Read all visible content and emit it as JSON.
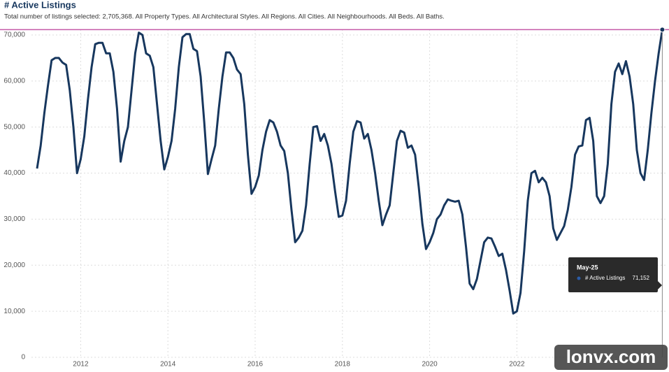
{
  "chart_data": {
    "type": "line",
    "title": "# Active Listings",
    "subtitle": "Total number of listings selected: 2,705,368. All Property Types. All Architectural Styles. All Regions. All Cities. All Neighbourhoods. All Beds. All Baths.",
    "x": [
      "2011-01",
      "2011-02",
      "2011-03",
      "2011-04",
      "2011-05",
      "2011-06",
      "2011-07",
      "2011-08",
      "2011-09",
      "2011-10",
      "2011-11",
      "2011-12",
      "2012-01",
      "2012-02",
      "2012-03",
      "2012-04",
      "2012-05",
      "2012-06",
      "2012-07",
      "2012-08",
      "2012-09",
      "2012-10",
      "2012-11",
      "2012-12",
      "2013-01",
      "2013-02",
      "2013-03",
      "2013-04",
      "2013-05",
      "2013-06",
      "2013-07",
      "2013-08",
      "2013-09",
      "2013-10",
      "2013-11",
      "2013-12",
      "2014-01",
      "2014-02",
      "2014-03",
      "2014-04",
      "2014-05",
      "2014-06",
      "2014-07",
      "2014-08",
      "2014-09",
      "2014-10",
      "2014-11",
      "2014-12",
      "2015-01",
      "2015-02",
      "2015-03",
      "2015-04",
      "2015-05",
      "2015-06",
      "2015-07",
      "2015-08",
      "2015-09",
      "2015-10",
      "2015-11",
      "2015-12",
      "2016-01",
      "2016-02",
      "2016-03",
      "2016-04",
      "2016-05",
      "2016-06",
      "2016-07",
      "2016-08",
      "2016-09",
      "2016-10",
      "2016-11",
      "2016-12",
      "2017-01",
      "2017-02",
      "2017-03",
      "2017-04",
      "2017-05",
      "2017-06",
      "2017-07",
      "2017-08",
      "2017-09",
      "2017-10",
      "2017-11",
      "2017-12",
      "2018-01",
      "2018-02",
      "2018-03",
      "2018-04",
      "2018-05",
      "2018-06",
      "2018-07",
      "2018-08",
      "2018-09",
      "2018-10",
      "2018-11",
      "2018-12",
      "2019-01",
      "2019-02",
      "2019-03",
      "2019-04",
      "2019-05",
      "2019-06",
      "2019-07",
      "2019-08",
      "2019-09",
      "2019-10",
      "2019-11",
      "2019-12",
      "2020-01",
      "2020-02",
      "2020-03",
      "2020-04",
      "2020-05",
      "2020-06",
      "2020-07",
      "2020-08",
      "2020-09",
      "2020-10",
      "2020-11",
      "2020-12",
      "2021-01",
      "2021-02",
      "2021-03",
      "2021-04",
      "2021-05",
      "2021-06",
      "2021-07",
      "2021-08",
      "2021-09",
      "2021-10",
      "2021-11",
      "2021-12",
      "2022-01",
      "2022-02",
      "2022-03",
      "2022-04",
      "2022-05",
      "2022-06",
      "2022-07",
      "2022-08",
      "2022-09",
      "2022-10",
      "2022-11",
      "2022-12",
      "2023-01",
      "2023-02",
      "2023-03",
      "2023-04",
      "2023-05",
      "2023-06",
      "2023-07",
      "2023-08",
      "2023-09",
      "2023-10",
      "2023-11",
      "2023-12",
      "2024-01",
      "2024-02",
      "2024-03",
      "2024-04",
      "2024-05",
      "2024-06",
      "2024-07",
      "2024-08",
      "2024-09",
      "2024-10",
      "2024-11",
      "2024-12",
      "2025-01",
      "2025-02",
      "2025-03",
      "2025-04",
      "2025-05"
    ],
    "series": [
      {
        "name": "# Active Listings",
        "color": "#17375e",
        "values": [
          41000,
          46000,
          53000,
          59000,
          64500,
          65000,
          65000,
          64000,
          63500,
          58000,
          50000,
          40000,
          43000,
          48000,
          56000,
          63000,
          68000,
          68300,
          68300,
          66000,
          66000,
          62000,
          54000,
          42500,
          47000,
          50000,
          58000,
          66000,
          70500,
          70000,
          66000,
          65500,
          63000,
          55000,
          47000,
          40800,
          43500,
          47000,
          54000,
          63000,
          69500,
          70200,
          70200,
          67000,
          66500,
          61000,
          51000,
          39800,
          43000,
          46000,
          54000,
          61000,
          66200,
          66200,
          65000,
          62500,
          61500,
          55000,
          44000,
          35500,
          37000,
          39500,
          45000,
          49000,
          51500,
          51000,
          49000,
          46000,
          44800,
          40000,
          32000,
          25000,
          26000,
          27500,
          33000,
          42000,
          50000,
          50200,
          47000,
          48500,
          46000,
          42000,
          36000,
          30500,
          30800,
          34000,
          42000,
          49000,
          51300,
          51000,
          47500,
          48500,
          45000,
          40000,
          34000,
          28700,
          31000,
          33000,
          40000,
          47000,
          49200,
          48800,
          45500,
          46000,
          44000,
          37000,
          29000,
          23500,
          25000,
          27000,
          30000,
          31000,
          33000,
          34300,
          34000,
          33800,
          34000,
          31000,
          24000,
          16000,
          14800,
          17000,
          21000,
          25000,
          26000,
          25800,
          24000,
          22000,
          22500,
          19000,
          14500,
          9500,
          10000,
          14000,
          23000,
          34000,
          40000,
          40500,
          38000,
          39000,
          38000,
          35000,
          28000,
          25500,
          27000,
          28500,
          32000,
          37000,
          44000,
          45800,
          46000,
          51500,
          52000,
          47000,
          35000,
          33500,
          35000,
          42000,
          55000,
          62000,
          63800,
          61500,
          64300,
          61000,
          55000,
          45000,
          40000,
          38500,
          45000,
          53000,
          60000,
          66000,
          71152
        ]
      }
    ],
    "xticks": [
      2012,
      2014,
      2016,
      2018,
      2020,
      2022
    ],
    "ylim": [
      0,
      70000
    ],
    "yticks": [
      0,
      {
        "value": 10000,
        "label": "10,000"
      },
      {
        "value": 20000,
        "label": "20,000"
      },
      {
        "value": 30000,
        "label": "30,000"
      },
      {
        "value": 40000,
        "label": "40,000"
      },
      {
        "value": 50000,
        "label": "50,000"
      },
      {
        "value": 60000,
        "label": "60,000"
      },
      {
        "value": 70000,
        "label": "70,000"
      }
    ],
    "grid": true,
    "tooltip": {
      "title": "May-25",
      "label": "# Active Listings",
      "value": 71152,
      "value_label": "71,152"
    },
    "watermark": "lonvx.com"
  }
}
